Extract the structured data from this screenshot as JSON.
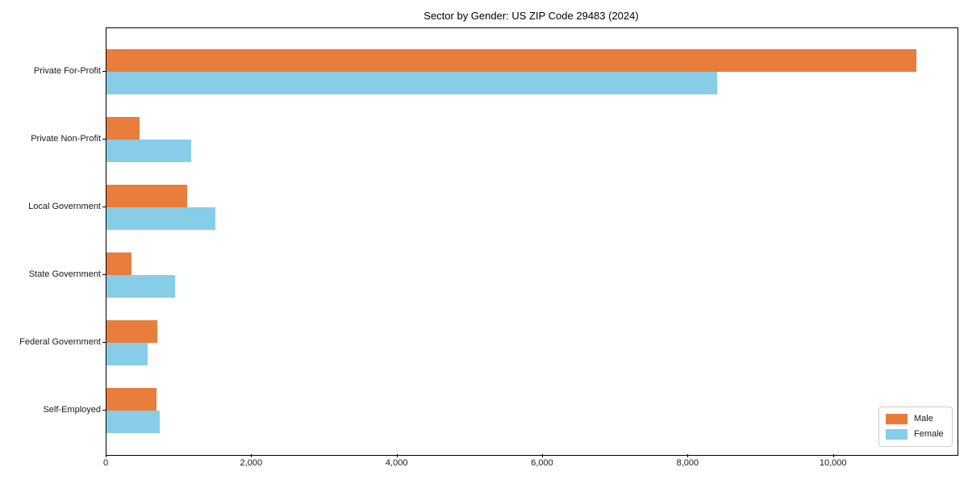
{
  "chart_data": {
    "type": "bar",
    "orientation": "horizontal",
    "title": "Sector by Gender: US ZIP Code 29483 (2024)",
    "categories": [
      "Private For-Profit",
      "Private Non-Profit",
      "Local Government",
      "State Government",
      "Federal Government",
      "Self-Employed"
    ],
    "series": [
      {
        "name": "Male",
        "color": "#e87d3c",
        "values": [
          11130,
          455,
          1110,
          345,
          700,
          690
        ]
      },
      {
        "name": "Female",
        "color": "#87cde8",
        "values": [
          8400,
          1165,
          1500,
          940,
          565,
          730
        ]
      }
    ],
    "x_ticks": [
      0,
      2000,
      4000,
      6000,
      8000,
      10000
    ],
    "x_tick_labels": [
      "0",
      "2,000",
      "4,000",
      "6,000",
      "8,000",
      "10,000"
    ],
    "xlim": [
      0,
      11700
    ],
    "xlabel": "",
    "ylabel": "",
    "grid": false,
    "legend_position": "lower right"
  }
}
